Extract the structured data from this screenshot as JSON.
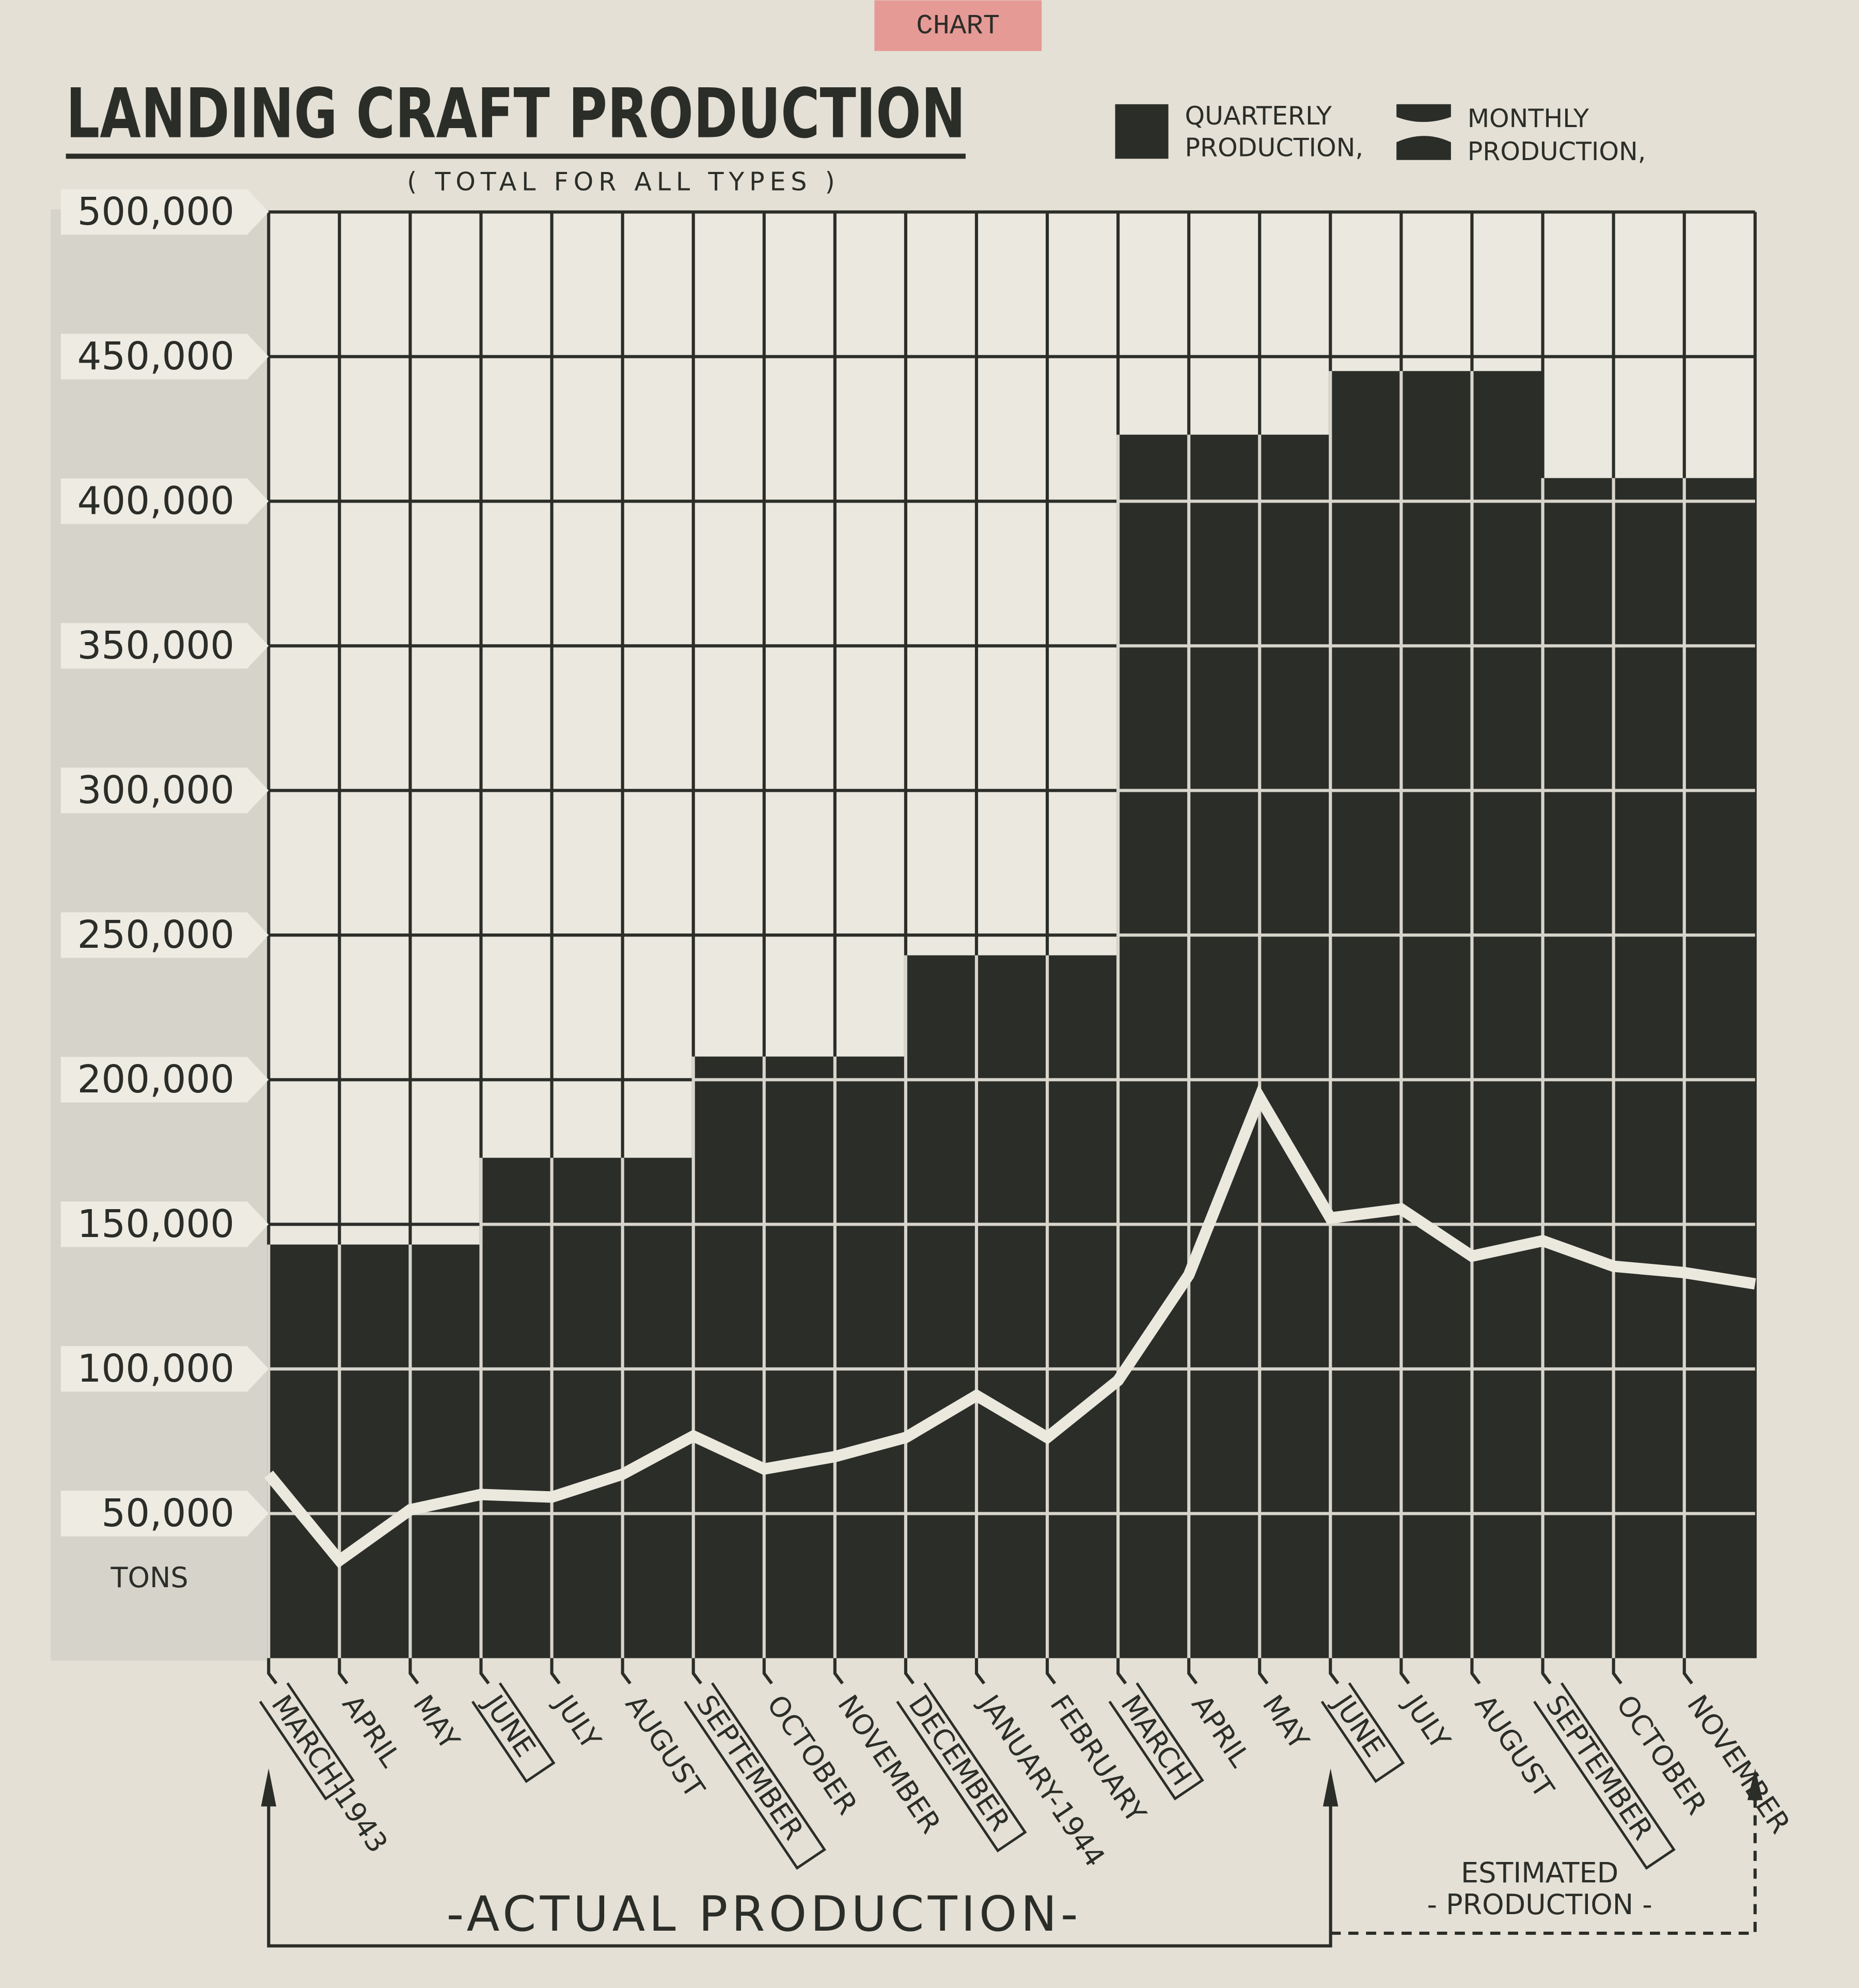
{
  "chart_data": {
    "type": "bar-line",
    "stamp": "CHART",
    "title": "LANDING CRAFT PRODUCTION",
    "subtitle": "( TOTAL FOR ALL TYPES )",
    "y_unit": "TONS",
    "categories": [
      "MARCH-1943",
      "APRIL",
      "MAY",
      "JUNE",
      "JULY",
      "AUGUST",
      "SEPTEMBER",
      "OCTOBER",
      "NOVEMBER",
      "DECEMBER",
      "JANUARY-1944",
      "FEBRUARY",
      "MARCH",
      "APRIL",
      "MAY",
      "JUNE",
      "JULY",
      "AUGUST",
      "SEPTEMBER",
      "OCTOBER",
      "NOVEMBER",
      null
    ],
    "series": [
      {
        "name": "QUARTERLY PRODUCTION,",
        "color": "#2b2d28",
        "values": [
          143000,
          143000,
          143000,
          173000,
          173000,
          173000,
          208000,
          208000,
          208000,
          243000,
          243000,
          243000,
          423000,
          423000,
          423000,
          445000,
          445000,
          445000,
          408000,
          408000,
          408000,
          null
        ]
      },
      {
        "name": "MONTHLY PRODUCTION,",
        "color": "#ebe8de",
        "values": [
          63600,
          33800,
          51300,
          56600,
          55700,
          63600,
          76800,
          65400,
          69700,
          76300,
          90800,
          76300,
          96000,
          132500,
          193900,
          152200,
          155300,
          139000,
          144300,
          135500,
          133300,
          129400
        ]
      }
    ],
    "ylim": [
      0,
      500000
    ],
    "yticks": [
      {
        "value": 50000,
        "label": "50,000"
      },
      {
        "value": 100000,
        "label": "100,000"
      },
      {
        "value": 150000,
        "label": "150,000"
      },
      {
        "value": 200000,
        "label": "200,000"
      },
      {
        "value": 250000,
        "label": "250,000"
      },
      {
        "value": 300000,
        "label": "300,000"
      },
      {
        "value": 350000,
        "label": "350,000"
      },
      {
        "value": 400000,
        "label": "400,000"
      },
      {
        "value": 450000,
        "label": "450,000"
      },
      {
        "value": 500000,
        "label": "500,000"
      }
    ],
    "grid": true,
    "annotations": {
      "actual": "-ACTUAL  PRODUCTION-",
      "estimated_1": "ESTIMATED",
      "estimated_2": "- PRODUCTION -"
    }
  }
}
